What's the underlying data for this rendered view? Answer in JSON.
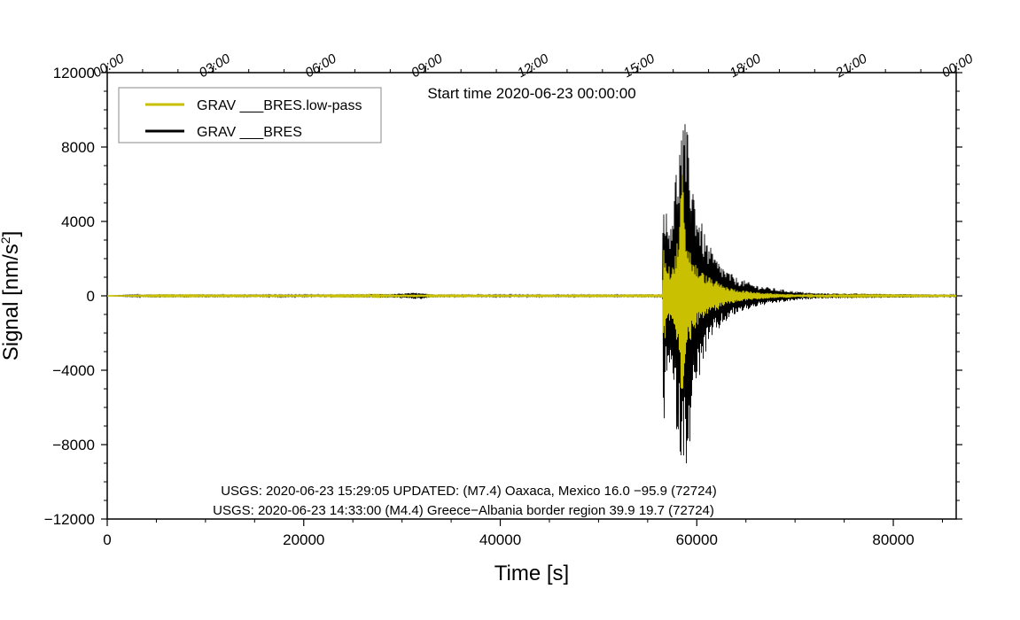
{
  "chart_data": {
    "type": "line",
    "title": "Start time 2020-06-23 00:00:00",
    "xlabel": "Time [s]",
    "ylabel": "Signal [nm/s",
    "ylabel_sup": "2",
    "ylabel_close": "]",
    "xlim": [
      0,
      86400
    ],
    "ylim": [
      -12000,
      12000
    ],
    "x_ticks": [
      0,
      20000,
      40000,
      60000,
      80000
    ],
    "x_tick_labels": [
      "0",
      "20000",
      "40000",
      "60000",
      "80000"
    ],
    "y_ticks": [
      -12000,
      -8000,
      -4000,
      0,
      4000,
      8000,
      12000
    ],
    "y_tick_labels": [
      "−12000",
      "−8000",
      "−4000",
      "0",
      "4000",
      "8000",
      "12000"
    ],
    "top_ticks": [
      0,
      10800,
      21600,
      32400,
      43200,
      54000,
      64800,
      75600,
      86400
    ],
    "top_tick_labels": [
      "00:00",
      "03:00",
      "06:00",
      "09:00",
      "12:00",
      "15:00",
      "18:00",
      "21:00",
      "00:00"
    ],
    "legend_position": "top-left",
    "series": [
      {
        "name": "GRAV ___BRES.low-pass",
        "color": "#c8c000",
        "kind": "envelope",
        "envelope": [
          [
            0,
            0
          ],
          [
            4500,
            40
          ],
          [
            8000,
            40
          ],
          [
            20000,
            30
          ],
          [
            29500,
            60
          ],
          [
            31500,
            80
          ],
          [
            33000,
            40
          ],
          [
            40000,
            30
          ],
          [
            56500,
            40
          ],
          [
            56600,
            2800
          ],
          [
            57000,
            1700
          ],
          [
            57500,
            1500
          ],
          [
            57800,
            2300
          ],
          [
            58200,
            3500
          ],
          [
            58450,
            6500
          ],
          [
            58550,
            7500
          ],
          [
            58700,
            4200
          ],
          [
            59000,
            3200
          ],
          [
            59500,
            2200
          ],
          [
            60000,
            1600
          ],
          [
            61000,
            1100
          ],
          [
            62000,
            800
          ],
          [
            63000,
            500
          ],
          [
            64000,
            350
          ],
          [
            66000,
            200
          ],
          [
            68000,
            120
          ],
          [
            71000,
            60
          ],
          [
            86400,
            30
          ]
        ]
      },
      {
        "name": "GRAV ___BRES",
        "color": "#000000",
        "kind": "envelope",
        "envelope": [
          [
            0,
            0
          ],
          [
            4500,
            80
          ],
          [
            8000,
            80
          ],
          [
            20000,
            60
          ],
          [
            29000,
            100
          ],
          [
            31000,
            160
          ],
          [
            32000,
            180
          ],
          [
            33000,
            80
          ],
          [
            40000,
            60
          ],
          [
            56500,
            80
          ],
          [
            56600,
            8300
          ],
          [
            56750,
            5500
          ],
          [
            57000,
            4000
          ],
          [
            57500,
            5000
          ],
          [
            58000,
            7500
          ],
          [
            58400,
            9000
          ],
          [
            58800,
            9300
          ],
          [
            59200,
            8500
          ],
          [
            59700,
            6000
          ],
          [
            60200,
            4500
          ],
          [
            61000,
            3000
          ],
          [
            62000,
            2000
          ],
          [
            63000,
            1400
          ],
          [
            64000,
            1000
          ],
          [
            66000,
            600
          ],
          [
            68000,
            400
          ],
          [
            70000,
            250
          ],
          [
            72000,
            150
          ],
          [
            86400,
            60
          ]
        ]
      }
    ],
    "annotations": [
      "USGS: 2020-06-23 15:29:05 UPDATED: (M7.4) Oaxaca, Mexico 16.0 −95.9 (72724)",
      "USGS: 2020-06-23 14:33:00 (M4.4) Greece−Albania border region 39.9 19.7 (72724)"
    ]
  }
}
